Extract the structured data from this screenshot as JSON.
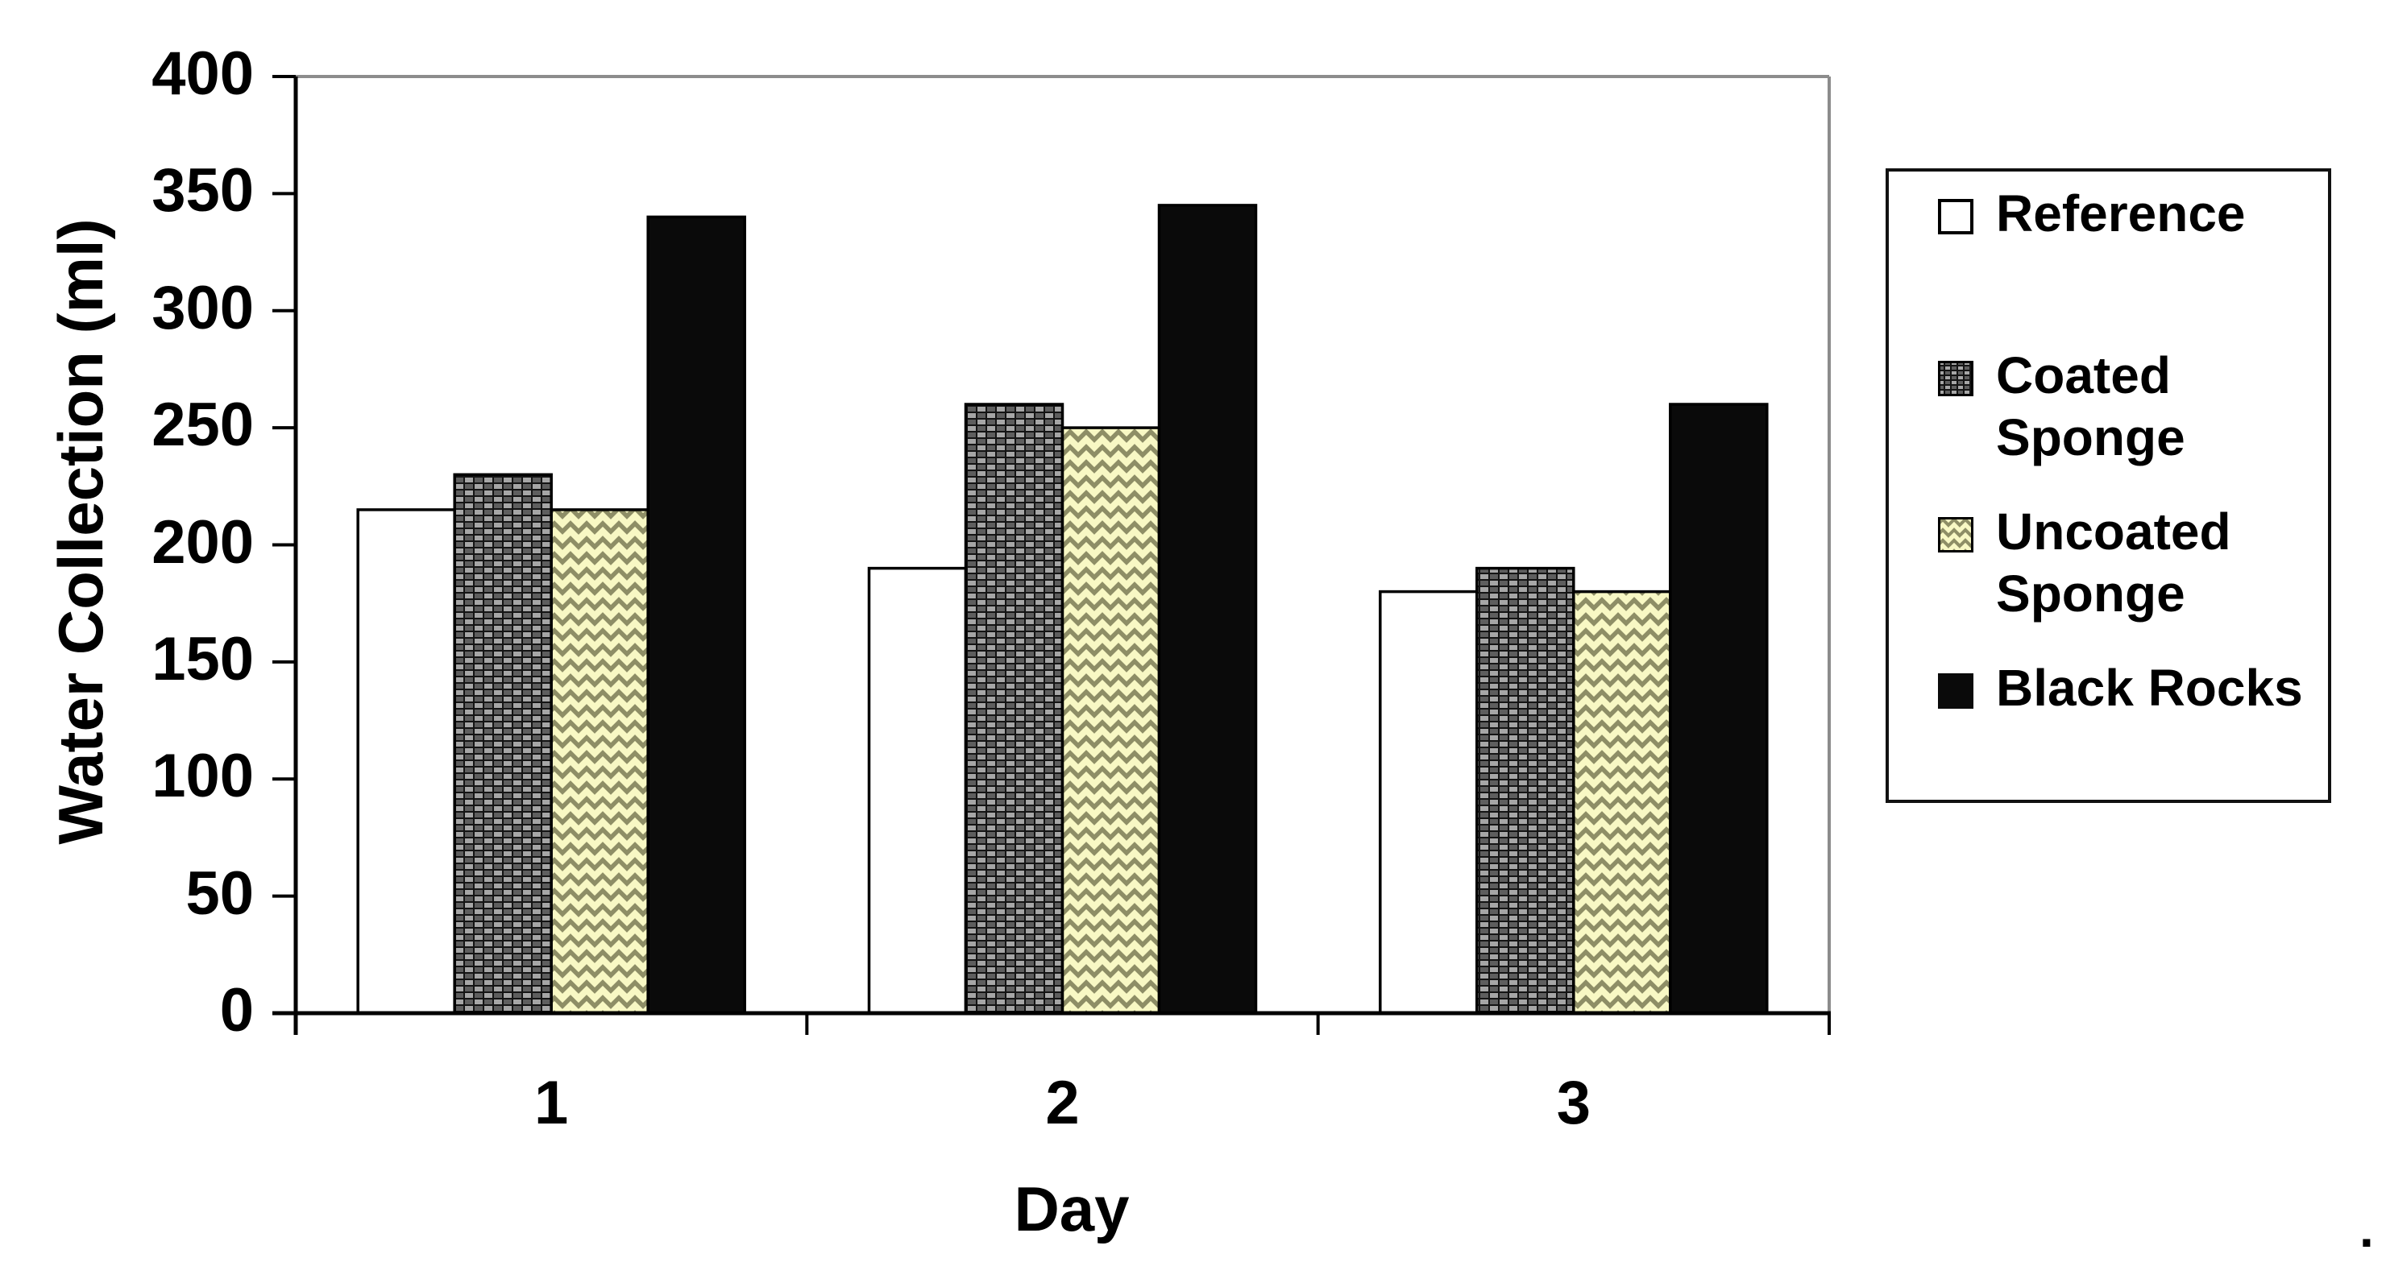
{
  "figure": {
    "kind": "grouped-bar-chart-figure",
    "background": "#ffffff"
  },
  "chart_data": {
    "type": "bar",
    "title": "",
    "xlabel": "Day",
    "ylabel": "Water Collection (ml)",
    "categories": [
      "1",
      "2",
      "3"
    ],
    "series": [
      {
        "name": "Reference",
        "style": "white-outline",
        "values": [
          215,
          190,
          180
        ]
      },
      {
        "name": "Coated Sponge",
        "style": "dark-weave-pattern",
        "values": [
          230,
          260,
          190
        ]
      },
      {
        "name": "Uncoated Sponge",
        "style": "yellow-zigzag-pattern",
        "values": [
          215,
          250,
          180
        ]
      },
      {
        "name": "Black Rocks",
        "style": "solid-black",
        "values": [
          340,
          345,
          260
        ]
      }
    ],
    "ylim": [
      0,
      400
    ],
    "ytick_step": 50,
    "yticks": [
      "400",
      "350",
      "300",
      "250",
      "200",
      "150",
      "100",
      "50",
      "0"
    ],
    "grid": false,
    "legend_position": "right"
  },
  "legend": {
    "items": [
      {
        "label_lines": [
          "Reference"
        ],
        "swatch": "white-outline"
      },
      {
        "label_lines": [
          "Coated",
          "Sponge"
        ],
        "swatch": "dark-weave-pattern"
      },
      {
        "label_lines": [
          "Uncoated",
          "Sponge"
        ],
        "swatch": "yellow-zigzag-pattern"
      },
      {
        "label_lines": [
          "Black Rocks"
        ],
        "swatch": "solid-black"
      }
    ]
  },
  "colors": {
    "bar_black": "#0a0a0a",
    "bar_outline": "#000000",
    "weave_base": "#141414",
    "weave_dash_light": "#a6a6a6",
    "weave_dash_mid": "#5e5e5e",
    "zigzag_background": "#f8f8c4",
    "zigzag_mark": "#8e8e66",
    "frame_gray": "#8c8c8c",
    "axis_black": "#000000",
    "text_black": "#000000"
  },
  "annotations": {
    "trailing_period": "."
  }
}
